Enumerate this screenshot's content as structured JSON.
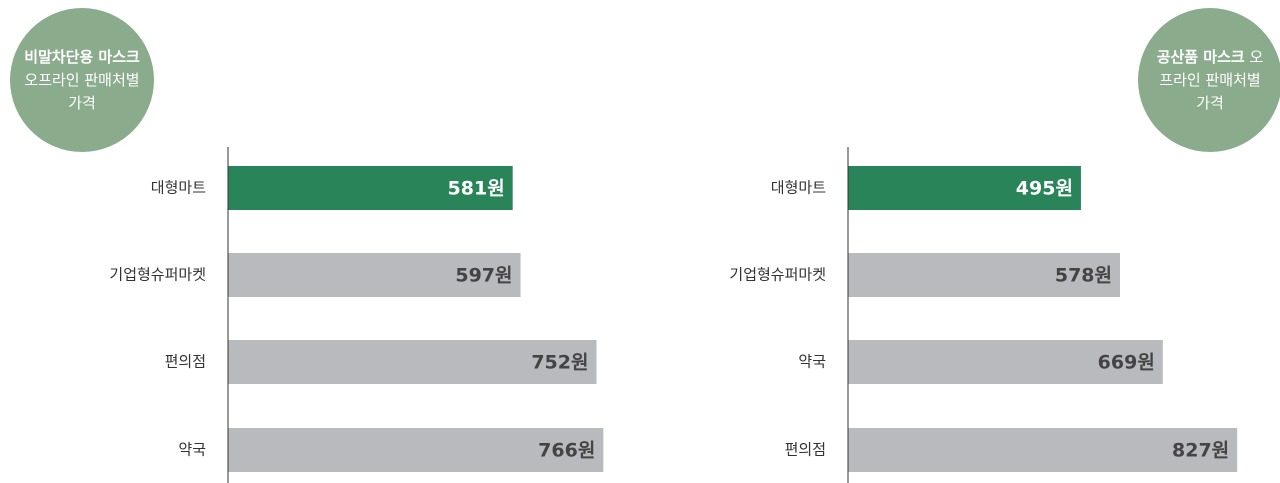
{
  "chart_data": [
    {
      "type": "barh",
      "title": {
        "bold": "비말차단용 마스크",
        "text": "오프라인 판매처별 가격"
      },
      "categories": [
        "대형마트",
        "기업형슈퍼마켓",
        "편의점",
        "약국"
      ],
      "values": [
        581,
        597,
        752,
        766
      ],
      "value_labels": [
        "581원",
        "597원",
        "752원",
        "766원"
      ],
      "colors": [
        "#2a8459",
        "#b9babd",
        "#b9babd",
        "#b9babd"
      ],
      "xlim": [
        0,
        800
      ]
    },
    {
      "type": "barh",
      "title": {
        "bold": "공산품 마스크",
        "text": "오프라인 판매처별 가격"
      },
      "categories": [
        "대형마트",
        "기업형슈퍼마켓",
        "약국",
        "편의점"
      ],
      "values": [
        495,
        578,
        669,
        827
      ],
      "value_labels": [
        "495원",
        "578원",
        "669원",
        "827원"
      ],
      "colors": [
        "#2a8459",
        "#b9babd",
        "#b9babd",
        "#b9babd"
      ],
      "xlim": [
        0,
        850
      ]
    }
  ]
}
